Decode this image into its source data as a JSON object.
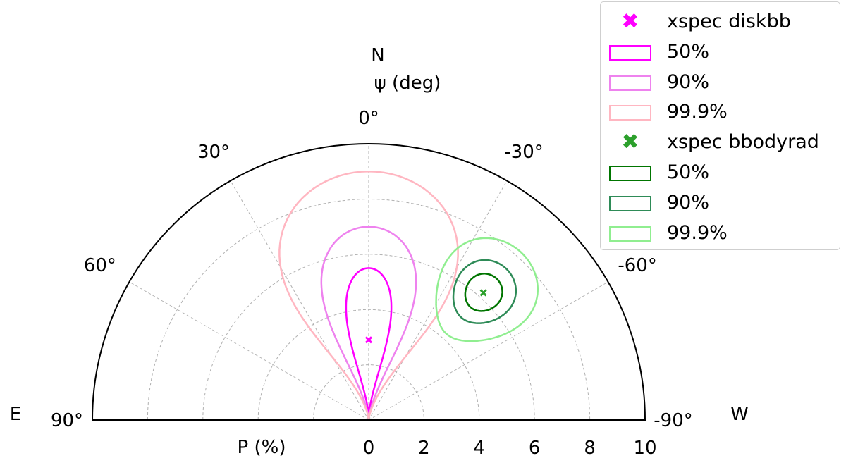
{
  "chart_data": {
    "type": "polar-contour",
    "radial_axis": {
      "label": "P (%)",
      "range": [
        0,
        10
      ],
      "ticks": [
        "0",
        "2",
        "4",
        "6",
        "8",
        "10"
      ],
      "tick_values": [
        0,
        2,
        4,
        6,
        8,
        10
      ]
    },
    "angular_axis": {
      "label": "ψ (deg)",
      "range": [
        -90,
        90
      ],
      "ticks": [
        {
          "value": 90,
          "label": "90°"
        },
        {
          "value": 60,
          "label": "60°"
        },
        {
          "value": 30,
          "label": "30°"
        },
        {
          "value": 0,
          "label": "0°"
        },
        {
          "value": -30,
          "label": "-30°"
        },
        {
          "value": -60,
          "label": "-60°"
        },
        {
          "value": -90,
          "label": "-90°"
        }
      ]
    },
    "compass": {
      "north": "N",
      "east": "E",
      "west": "W"
    },
    "grid": true,
    "legend_position": "top-right",
    "series": [
      {
        "name": "xspec diskbb",
        "color": "#ff00ff",
        "best_fit": {
          "P": 2.9,
          "psi": 0
        },
        "contours": [
          {
            "level": "50%",
            "color": "#ff00ff",
            "P_range": [
              0.3,
              5.5
            ],
            "psi_halfwidth": 13.0
          },
          {
            "level": "90%",
            "color": "#ee82ee",
            "P_range": [
              0,
              7.0
            ],
            "psi_halfwidth": 22.0
          },
          {
            "level": "99.9%",
            "color": "#ffb6c1",
            "P_range": [
              0,
              9.0
            ],
            "psi_halfwidth": 33.0
          }
        ]
      },
      {
        "name": "xspec bbodyrad",
        "color": "#2ca02c",
        "best_fit": {
          "P": 6.2,
          "psi": -42
        },
        "contours": [
          {
            "level": "50%",
            "color": "#007500",
            "P_range": [
              5.5,
              6.9
            ],
            "psi_halfwidth": 6.0
          },
          {
            "level": "90%",
            "color": "#2e8b57",
            "P_range": [
              5.0,
              7.4
            ],
            "psi_halfwidth": 10.0
          },
          {
            "level": "99.9%",
            "color": "#90ee90",
            "P_range": [
              4.2,
              8.2
            ],
            "psi_halfwidth": 16.0
          }
        ]
      }
    ]
  },
  "legend": {
    "items": [
      {
        "label": "xspec diskbb",
        "kind": "marker",
        "marker": "✖",
        "color": "#ff00ff"
      },
      {
        "label": "50%",
        "kind": "patch",
        "color": "#ff00ff"
      },
      {
        "label": "90%",
        "kind": "patch",
        "color": "#ee82ee"
      },
      {
        "label": "99.9%",
        "kind": "patch",
        "color": "#ffb6c1"
      },
      {
        "label": "xspec bbodyrad",
        "kind": "marker",
        "marker": "✖",
        "color": "#2ca02c"
      },
      {
        "label": "50%",
        "kind": "patch",
        "color": "#007500"
      },
      {
        "label": "90%",
        "kind": "patch",
        "color": "#2e8b57"
      },
      {
        "label": "99.9%",
        "kind": "patch",
        "color": "#90ee90"
      }
    ]
  }
}
